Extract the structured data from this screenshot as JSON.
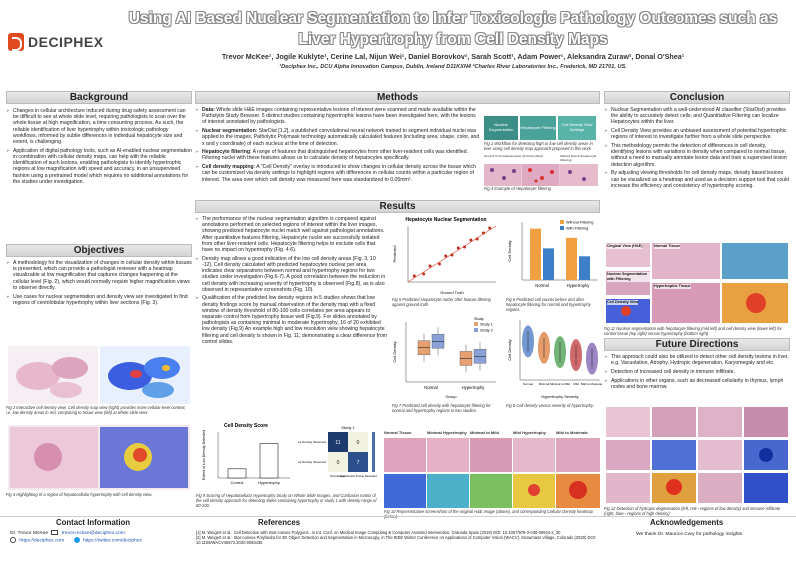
{
  "header": {
    "logo_text": "DECIPHEX",
    "title": "Using AI Based Nuclear Segmentation to Infer Toxicologic Pathology Outcomes such as Liver Hypertrophy from Cell Density Maps",
    "authors": "Trevor McKee¹, Jogile Kuklyte¹, Cerine Lal, Nijun Wei¹, Daniel Borovkov¹, Sarah Scott¹, Adam Power¹, Aleksandra Zuraw², Donal O'Shea¹",
    "affiliation": "¹Deciphex Inc., DCU Alpha Innovation Campus, Dublin, Ireland D11KXN4 ²Charles River Laboratories Inc., Frederick, MD 21701, US."
  },
  "sections": {
    "background": {
      "heading": "Background",
      "bullets": [
        "Changes in cellular architecture induced during drug safety assessment can be difficult to see at whole slide level, requiring pathologists to scan over the whole tissue at high magnification, a time consuming process. As such, the reliable identification of liver hypertrophy within toxicologic pathology workflows, informed by subtle differences in individual hepatocyte size and extent, is challenging.",
        "Application of digital pathology tools, such as AI-enabled nuclear segmentation in combination with cellular density maps, can help with the reliable identification of such lesions, enabling pathologists to identify hypertrophic regions at low magnification with speed and accuracy, in an unsupervised fashion using a pretrained model which requires no additional annotations for the studies under investigation."
      ]
    },
    "objectives": {
      "heading": "Objectives",
      "bullets": [
        "A methodology for the visualization of changes in cellular density within tissues is presented, which can provide a pathologist reviewer with a heatmap visualizable at low magnification that captures changes happening at the cellular level (Fig. 2), which would normally require higher magnification views to observe directly.",
        "Use cases for nuclear segmentation and density view are investigated to find regions of centrilobular hypertrophy within liver sections (Fig. 3)."
      ]
    },
    "methods": {
      "heading": "Methods",
      "items": [
        {
          "label": "Data:",
          "text": " Whole slide H&E images containing representative lesions of interest were scanned and made available within the Patholytix Study Browser. 5 distinct studies containing hypertrophic lesions have been investigated here, with the lesions of interest annotated by pathologists."
        },
        {
          "label": "Nuclear segmentation",
          "text": ": StarDist [1,2], a published convolutional neural network trained to segment individual nuclei was applied to the images. Patholytix Polymask technology automatically calculated features (including area, shape, color, and x and y coordinate) of each nucleus at the time of detection."
        },
        {
          "label": "Hepatocyte filtering",
          "text": ": A range of features that distinguished hepatocytes from other liver-resident cells was identified. Filtering nuclei with these features allows us to calculate density of hepatocytes specifically."
        },
        {
          "label": "Cell density mapping",
          "text": ": A \"Cell Density\" overlay is introduced to show changes in cellular density across the tissue which can be customized via density settings to highlight regions with differences in cellular counts within a particular region of interest. The area over which cell density was measured here was standardized to 0.05mm²."
        }
      ],
      "flow": [
        "Nuclear Segmentation",
        "Hepatocyte Filtering",
        "Cell Density View Settings"
      ],
      "fig1_caption": "Fig 1 Workflow for detecting high or low cell density areas in liver using cell density map approach proposed in this work",
      "fig4_caption": "Fig 4 Example of Hepatocyte filtering",
      "fig4_labels": [
        "Ground Truth (Hepatocytes)",
        "All Nuclei (Red)",
        "Filtered Result (Hepatocyte Filtering)"
      ]
    },
    "results": {
      "heading": "Results",
      "bullets": [
        "The performance of the nuclear segmentation algorithm is compared against annotations performed on selected regions of interest within the liver images, showing predicted hepatocyte nuclei match well against pathologist annotations. After quantitative features filtering, Hepatocyte nuclei are successfully isolated from other liver-resident cells. Hepatocyte filtering helps to exclude cells that have no impact on hypertrophy (Fig. 4-6).",
        "Density map allows a good indication of the low cell density areas (Fig. 3, 10 -12). Cell density calculated with predicted hepatocytes nuclear per area indicates clear separations between normal and hypertrophy regions for two studies under investigation (Fig.6-7). A good correlation between the reduction in cell density with increasing severity of hypertrophy is observed (Fig.8), as is also observed in representative screenshots (Fig. 10).",
        "Qualification of the predicted low density regions in 5 studies shows that low density findings score by manual observation of the density map with a fixed window of density threshold of 80-100 cells correlates per area appears to separate control from hypertrophy tissue well (Fig.9). For slides annotated by pathologists as containing minimal to moderate hypertrophy, 16 of 20 exhibited low density (Fig.9) An example high and low resolution view showing hepatocyte filtering and cell density is shown in Fig. 11, demonstrating a clear difference from control slides."
      ]
    },
    "conclusion": {
      "heading": "Conclusion",
      "bullets": [
        "Nuclear Segmentation with a well-understood AI classifier (StarDist) provides the ability to accurately detect cells; and Quantitative Filtering can localize Hepatocytes within the liver.",
        "Cell Density View provides an unbiased assessment of potential hypertrophic regions of interest to investigate further from a whole slide perspective.",
        "This methodology permits the detection of differences in cell density, identifying lesions with variations in density when compared to normal tissue, without a need to manually annotate lesion data and train a supervised lesion detection algorithm.",
        "By adjusting viewing thresholds for cell density maps, density based lesions can be visualized as a heatmap and used as a decision support tool that could increase the efficiency and consistency of hypertrophy scoring."
      ],
      "fig11_labels": [
        "Original View (H&E)",
        "Normal Tissue",
        "Nuclear Segmentation with Filtering",
        "Hypertrophic Tissue",
        "Cell Density View"
      ],
      "fig11_caption": "Fig 11 Nuclear segmentation with hepatocyte filtering (mid left) and cell density view (lower left) for control tissue (top right) versus hypertrophy (bottom right)"
    },
    "future": {
      "heading": "Future Directions",
      "bullets": [
        "This approach could also be utilized to detect other cell density lesions in liver, e.g. Vacuolation, Atrophy, Hydropic degeneration, Karyomegaly and etc.",
        "Detection of increased cell density in immune infiltrate.",
        "Applications in other organs, such as decreased cellularity in thymus, lymph nodes and bone marrow."
      ],
      "fig12_caption": "Fig 12 Detection of hydropic degeneration (left, red—regions of low density) and immune infiltrate (right, blue—regions of high density)"
    }
  },
  "figures": {
    "fig2_caption": "Fig 2 Interactive cell density view. Cell density map view (right) provides more cellular-level context, i.e. low density areas in red, comparing to tissue view (left) at whole slide view",
    "fig3_caption": "Fig 3 Highlighting of a region of hepatocellular hypertrophy with cell density view.",
    "fig5_caption": "Fig 5 Predicted Hepatocyte nuclei after feature filtering against ground truth",
    "fig6_caption": "Fig 6 Predicted cell counts before and after hepatocyte filtering for normal and hypertrophy regions.",
    "fig7_caption": "Fig 7 Predicted cell density with hepatocyte filtering for normal and hypertrophy regions in two studies.",
    "fig8_caption": "Fig 8 Cell density versus severity of hypertrophy.",
    "fig9_caption": "Fig 9 Scoring of Hepatocellular Hypertrophy Study on Whole Slide Images, and Confusion matrix of the cell density approach for detecting slides containing hypertrophy in study 1 with density range of 80-100.",
    "fig10_caption": "Fig 10 Representative screenshots of the original H&E image (above), and corresponding Cellular Density heatmap (below)",
    "fig10_labels": [
      "Normal Tissue",
      "Minimal Hypertrophy",
      "Minimal to Mild",
      "Mild Hypertrophy",
      "Mild to Moderate"
    ]
  },
  "chart_data": [
    {
      "type": "scatter",
      "title": "Hepatocyte Nuclear Segmentation",
      "xlabel": "Ground Truth",
      "ylabel": "Predicted",
      "x": [
        120,
        150,
        170,
        200,
        220,
        240,
        260,
        280,
        300,
        320,
        340,
        360
      ],
      "y": [
        130,
        140,
        180,
        190,
        230,
        235,
        270,
        275,
        310,
        315,
        345,
        370
      ]
    },
    {
      "type": "bar",
      "title": "",
      "categories": [
        "Normal",
        "Hypertrophy"
      ],
      "series": [
        {
          "name": "Without Filtering",
          "values": [
            195,
            160
          ]
        },
        {
          "name": "With Filtering",
          "values": [
            120,
            90
          ]
        }
      ],
      "ylabel": "Cell Density"
    },
    {
      "type": "box",
      "categories": [
        "Normal",
        "Hypertrophy"
      ],
      "series": [
        {
          "name": "Study 1",
          "values": [
            140,
            115
          ]
        },
        {
          "name": "Study 2",
          "values": [
            155,
            120
          ]
        }
      ],
      "xlabel": "Group",
      "ylabel": "Cell Density",
      "legend_title": "Study"
    },
    {
      "type": "violin",
      "categories": [
        "Normal",
        "Minimal",
        "Minimal to Mild",
        "Mild",
        "Mild to Moderate"
      ],
      "values": [
        150,
        135,
        125,
        118,
        110
      ],
      "xlabel": "Hypertrophy Severity",
      "ylabel": "Cell Density"
    },
    {
      "type": "bar",
      "title": "Cell Density Score",
      "categories": [
        "Control",
        "Hypertrophy"
      ],
      "values": [
        4,
        15
      ],
      "ylabel": "Extent of Low Density Detected"
    },
    {
      "type": "heatmap",
      "title": "Study 1",
      "rows": [
        "Non Low Density Observed",
        "Low Density Observed"
      ],
      "cols": [
        "Normal Liver",
        "Hypertrophic Tissue Revealed"
      ],
      "values": [
        [
          11,
          0
        ],
        [
          0,
          7
        ]
      ]
    }
  ],
  "footer": {
    "contact_heading": "Contact Information",
    "contact_name": "Dr. Trevor McKee",
    "contact_email": "trevor.mckee@deciphex.com",
    "contact_web": "https://deciphex.com",
    "contact_twitter": "https://twitter.com/deciphex",
    "refs_heading": "References",
    "refs": [
      "[1] M. Weigert et al.: Cell Detection with Star-convex Polygons., in Int. Conf. on Medical Image Computing & Computer Assisted Intervention, Granada Spain (2018) DOI: 10.1007/978-3-030-00934-2_30",
      "[2] M. Weigert et al.: Star-convex Polyhedra for 3D Object Detection and Segmentation in Microscopy, in The IEEE Winter Conference on Applications of Computer Vision (WACV), Snowmass Village, Colorado (2020) DOI: 10.1109/WACV45572.2020.9093435"
    ],
    "ack_heading": "Acknowledgements",
    "ack_text": "We thank Dr. Maurice Cary for pathology insights"
  }
}
